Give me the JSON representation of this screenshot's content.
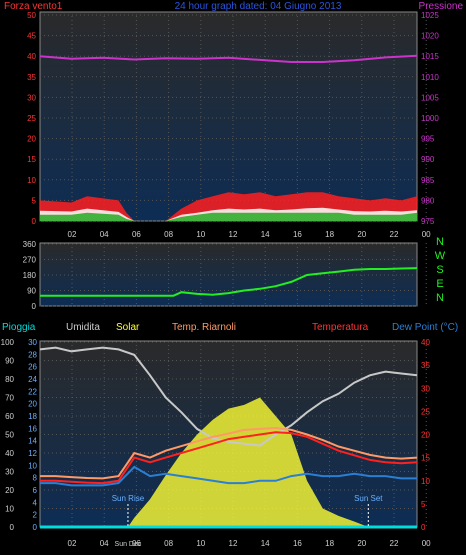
{
  "chart_data": [
    {
      "type": "line",
      "title": "24 hour graph dated: 04 Giugno 2013",
      "left_label": "Forza vento1",
      "right_label": "Pressione",
      "x_ticks": [
        "02",
        "04",
        "06",
        "08",
        "10",
        "12",
        "14",
        "16",
        "18",
        "20",
        "22",
        "00"
      ],
      "y_left_ticks": [
        "50",
        "45",
        "40",
        "35",
        "30",
        "25",
        "20",
        "15",
        "10",
        "5",
        "0"
      ],
      "y_right_ticks": [
        "1025",
        "1020",
        "1015",
        "1010",
        "1005",
        "1000",
        "995",
        "990",
        "985",
        "980",
        "975"
      ],
      "ylim_left": [
        0,
        50
      ],
      "ylim_right": [
        975,
        1025
      ],
      "x_range_hours": [
        0,
        24
      ],
      "series": [
        {
          "name": "Pressione",
          "color": "#cc33cc",
          "x": [
            0,
            2,
            4,
            6,
            8,
            10,
            12,
            14,
            16,
            18,
            20,
            22,
            24
          ],
          "y": [
            1015.0,
            1014.4,
            1014.6,
            1014.2,
            1014.5,
            1014.4,
            1014.6,
            1014.1,
            1013.6,
            1013.6,
            1014.0,
            1014.7,
            1015.1
          ]
        },
        {
          "color": "#ff2020",
          "x": [
            0,
            2,
            3,
            5,
            5.5,
            6,
            8,
            9,
            10,
            11,
            12,
            13,
            14,
            15,
            16,
            17,
            18,
            19,
            20,
            21,
            22,
            23,
            24
          ],
          "y": [
            5,
            4.5,
            6,
            5,
            2,
            0,
            0,
            3,
            5,
            6,
            7,
            6.5,
            7,
            6,
            6.5,
            7,
            7,
            6,
            5.5,
            5,
            5.5,
            5,
            6
          ]
        },
        {
          "color": "#ffffff",
          "x": [
            0,
            2,
            3,
            5,
            5.5,
            6,
            8,
            9,
            10,
            11,
            12,
            13,
            14,
            15,
            16,
            17,
            18,
            19,
            20,
            21,
            22,
            23,
            24
          ],
          "y": [
            2.5,
            2.3,
            3,
            2.2,
            1,
            0,
            0,
            1.5,
            2,
            2.6,
            3,
            2.8,
            3,
            2.6,
            2.8,
            3.1,
            3.2,
            2.8,
            2.4,
            2.3,
            2.5,
            2.3,
            2.6
          ]
        },
        {
          "color": "#22aa22",
          "x": [
            0,
            2,
            3,
            5,
            5.5,
            6,
            8,
            9,
            10,
            11,
            12,
            13,
            14,
            15,
            16,
            17,
            18,
            19,
            20,
            21,
            22,
            23,
            24
          ],
          "y": [
            1.5,
            1.5,
            2,
            1.5,
            0.5,
            0,
            0,
            1,
            1.5,
            2,
            2,
            2,
            2,
            2,
            2,
            2,
            2,
            2,
            1.5,
            1.5,
            1.5,
            1.5,
            2
          ]
        }
      ]
    },
    {
      "type": "line",
      "right_labels": [
        "N",
        "W",
        "S",
        "E",
        "N"
      ],
      "x_ticks": [
        "02",
        "04",
        "06",
        "08",
        "10",
        "12",
        "14",
        "16",
        "18",
        "20",
        "22",
        "00"
      ],
      "y_ticks": [
        "360",
        "270",
        "180",
        "90",
        "0"
      ],
      "ylim": [
        0,
        360
      ],
      "series": [
        {
          "color": "#22ee22",
          "x": [
            0,
            1,
            2,
            3,
            4,
            5,
            6,
            7,
            8,
            8.5,
            9,
            10,
            11,
            12,
            13,
            14,
            15,
            16,
            17,
            18,
            19,
            20,
            21,
            22,
            23,
            24
          ],
          "y": [
            60,
            60,
            60,
            60,
            60,
            60,
            60,
            60,
            60,
            60,
            80,
            70,
            65,
            75,
            90,
            100,
            115,
            140,
            180,
            190,
            200,
            210,
            215,
            215,
            218,
            220
          ]
        }
      ]
    },
    {
      "type": "line",
      "legend": [
        "Pioggia",
        "Umidita",
        "Solar",
        "Temp. Riarnoli",
        "Temperatura",
        "Dew Point (°C)"
      ],
      "x_ticks": [
        "02",
        "04",
        "06",
        "08",
        "10",
        "12",
        "14",
        "16",
        "18",
        "20",
        "22",
        "00"
      ],
      "y_left1_ticks": [
        "100",
        "90",
        "80",
        "70",
        "60",
        "50",
        "40",
        "30",
        "20",
        "10",
        "0"
      ],
      "y_left2_ticks": [
        "30",
        "28",
        "26",
        "24",
        "22",
        "20",
        "18",
        "16",
        "14",
        "12",
        "10",
        "8",
        "6",
        "4",
        "2",
        "0"
      ],
      "y_right_ticks": [
        "40",
        "35",
        "30",
        "25",
        "20",
        "15",
        "10",
        "5",
        "0"
      ],
      "ylim_left1": [
        0,
        100
      ],
      "ylim_left2": [
        0,
        30
      ],
      "ylim_right": [
        0,
        40
      ],
      "annotations": [
        "Sun Rise",
        "Sun Set",
        "Sun Dec"
      ],
      "sun_rise_hour": 5.6,
      "sun_set_hour": 20.9,
      "series": [
        {
          "name": "Umidita",
          "color": "#c8c8c8",
          "axis": "left1",
          "x": [
            0,
            1,
            2,
            3,
            4,
            5,
            6,
            7,
            8,
            9,
            10,
            11,
            12,
            13,
            14,
            15,
            16,
            17,
            18,
            19,
            20,
            21,
            22,
            23,
            24
          ],
          "y": [
            96,
            97,
            95,
            96,
            97,
            96,
            93,
            82,
            70,
            62,
            53,
            48,
            46,
            45,
            44,
            50,
            55,
            62,
            68,
            72,
            78,
            82,
            84,
            83,
            82
          ]
        },
        {
          "name": "Temperatura",
          "color": "#ff2020",
          "axis": "right",
          "x": [
            0,
            1,
            2,
            3,
            4,
            5,
            6,
            7,
            8,
            9,
            10,
            11,
            12,
            13,
            14,
            15,
            16,
            17,
            18,
            19,
            20,
            21,
            22,
            23,
            24
          ],
          "y": [
            10,
            10,
            9.8,
            9.6,
            9.5,
            10,
            15,
            14,
            15,
            16,
            17,
            18,
            19,
            19.5,
            20,
            20.5,
            20.3,
            19.5,
            18,
            16.5,
            15.5,
            14.5,
            14,
            13.8,
            14
          ]
        },
        {
          "name": "Temp. Riarnoli",
          "color": "#ff9966",
          "axis": "right",
          "x": [
            0,
            1,
            2,
            3,
            4,
            5,
            6,
            7,
            8,
            9,
            10,
            11,
            12,
            13,
            14,
            15,
            16,
            17,
            18,
            19,
            20,
            21,
            22,
            23,
            24
          ],
          "y": [
            11,
            11,
            10.8,
            10.6,
            10.5,
            11,
            16,
            15,
            16.5,
            17.5,
            18.5,
            19.5,
            20.2,
            21,
            21.2,
            21.4,
            21,
            20,
            18.8,
            17.4,
            16.5,
            15.6,
            15,
            14.8,
            15
          ]
        },
        {
          "name": "Dew Point (°C)",
          "color": "#2a7fd4",
          "axis": "right",
          "x": [
            0,
            1,
            2,
            3,
            4,
            5,
            6,
            7,
            8,
            9,
            10,
            11,
            12,
            13,
            14,
            15,
            16,
            17,
            18,
            19,
            20,
            21,
            22,
            23,
            24
          ],
          "y": [
            9.5,
            9.5,
            9,
            9,
            9,
            9.5,
            13,
            11,
            11.5,
            11,
            10.5,
            10,
            9.5,
            9.5,
            10,
            10,
            11,
            11.5,
            11,
            11,
            11.5,
            11,
            11,
            10.5,
            10.5
          ]
        },
        {
          "name": "Solar",
          "color": "#ffff33",
          "axis": "left1",
          "x": [
            0,
            5.6,
            6,
            7,
            8,
            9,
            10,
            11,
            12,
            13,
            14,
            15,
            16,
            17,
            18,
            19,
            20,
            20.9,
            24
          ],
          "y": [
            0,
            0,
            5,
            15,
            28,
            40,
            50,
            58,
            64,
            66,
            70,
            60,
            50,
            25,
            10,
            6,
            3,
            0,
            0
          ]
        },
        {
          "name": "Pioggia",
          "color": "#00dddd",
          "axis": "left1",
          "x": [
            0,
            24
          ],
          "y": [
            0,
            0
          ]
        }
      ]
    }
  ]
}
